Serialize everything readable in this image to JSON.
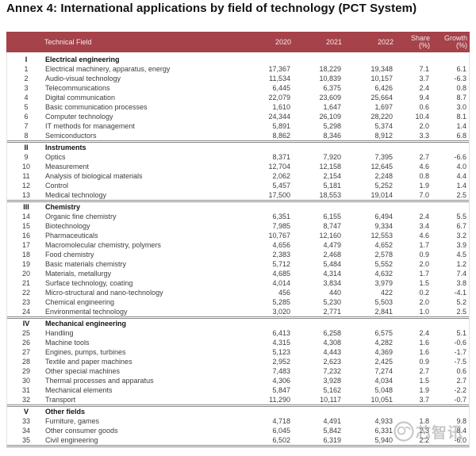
{
  "title": "Annex 4: International applications by field of technology (PCT System)",
  "watermark": {
    "logo_icon": "chip-mascot-circle-icon",
    "text": "芯智讯"
  },
  "table": {
    "columns": {
      "field": "Technical Field",
      "years": [
        "2020",
        "2021",
        "2022"
      ],
      "share": {
        "label": "Share",
        "sub": "(%)"
      },
      "growth": {
        "label": "Growth",
        "sub": "(%)"
      }
    },
    "sections": [
      {
        "numeral": "I",
        "name": "Electrical engineering",
        "rows": [
          {
            "num": "1",
            "field": "Electrical machinery, apparatus, energy",
            "y2020": "17,367",
            "y2021": "18,229",
            "y2022": "19,348",
            "share": "7.1",
            "growth": "6.1"
          },
          {
            "num": "2",
            "field": "Audio-visual technology",
            "y2020": "11,534",
            "y2021": "10,839",
            "y2022": "10,157",
            "share": "3.7",
            "growth": "-6.3"
          },
          {
            "num": "3",
            "field": "Telecommunications",
            "y2020": "6,445",
            "y2021": "6,375",
            "y2022": "6,426",
            "share": "2.4",
            "growth": "0.8"
          },
          {
            "num": "4",
            "field": "Digital communication",
            "y2020": "22,079",
            "y2021": "23,609",
            "y2022": "25,664",
            "share": "9.4",
            "growth": "8.7"
          },
          {
            "num": "5",
            "field": "Basic communication processes",
            "y2020": "1,610",
            "y2021": "1,647",
            "y2022": "1,697",
            "share": "0.6",
            "growth": "3.0"
          },
          {
            "num": "6",
            "field": "Computer technology",
            "y2020": "24,344",
            "y2021": "26,109",
            "y2022": "28,220",
            "share": "10.4",
            "growth": "8.1"
          },
          {
            "num": "7",
            "field": "IT methods for management",
            "y2020": "5,891",
            "y2021": "5,298",
            "y2022": "5,374",
            "share": "2.0",
            "growth": "1.4"
          },
          {
            "num": "8",
            "field": "Semiconductors",
            "y2020": "8,862",
            "y2021": "8,346",
            "y2022": "8,912",
            "share": "3.3",
            "growth": "6.8"
          }
        ]
      },
      {
        "numeral": "II",
        "name": "Instruments",
        "rows": [
          {
            "num": "9",
            "field": "Optics",
            "y2020": "8,371",
            "y2021": "7,920",
            "y2022": "7,395",
            "share": "2.7",
            "growth": "-6.6"
          },
          {
            "num": "10",
            "field": "Measurement",
            "y2020": "12,704",
            "y2021": "12,158",
            "y2022": "12,645",
            "share": "4.6",
            "growth": "4.0"
          },
          {
            "num": "11",
            "field": "Analysis of biological materials",
            "y2020": "2,062",
            "y2021": "2,154",
            "y2022": "2,248",
            "share": "0.8",
            "growth": "4.4"
          },
          {
            "num": "12",
            "field": "Control",
            "y2020": "5,457",
            "y2021": "5,181",
            "y2022": "5,252",
            "share": "1.9",
            "growth": "1.4"
          },
          {
            "num": "13",
            "field": "Medical technology",
            "y2020": "17,500",
            "y2021": "18,553",
            "y2022": "19,014",
            "share": "7.0",
            "growth": "2.5"
          }
        ]
      },
      {
        "numeral": "III",
        "name": "Chemistry",
        "rows": [
          {
            "num": "14",
            "field": "Organic fine chemistry",
            "y2020": "6,351",
            "y2021": "6,155",
            "y2022": "6,494",
            "share": "2.4",
            "growth": "5.5"
          },
          {
            "num": "15",
            "field": "Biotechnology",
            "y2020": "7,985",
            "y2021": "8,747",
            "y2022": "9,334",
            "share": "3.4",
            "growth": "6.7"
          },
          {
            "num": "16",
            "field": "Pharmaceuticals",
            "y2020": "10,767",
            "y2021": "12,160",
            "y2022": "12,553",
            "share": "4.6",
            "growth": "3.2"
          },
          {
            "num": "17",
            "field": "Macromolecular chemistry, polymers",
            "y2020": "4,656",
            "y2021": "4,479",
            "y2022": "4,652",
            "share": "1.7",
            "growth": "3.9"
          },
          {
            "num": "18",
            "field": "Food chemistry",
            "y2020": "2,383",
            "y2021": "2,468",
            "y2022": "2,578",
            "share": "0.9",
            "growth": "4.5"
          },
          {
            "num": "19",
            "field": "Basic materials chemistry",
            "y2020": "5,712",
            "y2021": "5,484",
            "y2022": "5,552",
            "share": "2.0",
            "growth": "1.2"
          },
          {
            "num": "20",
            "field": "Materials, metallurgy",
            "y2020": "4,685",
            "y2021": "4,314",
            "y2022": "4,632",
            "share": "1.7",
            "growth": "7.4"
          },
          {
            "num": "21",
            "field": "Surface technology, coating",
            "y2020": "4,014",
            "y2021": "3,834",
            "y2022": "3,979",
            "share": "1.5",
            "growth": "3.8"
          },
          {
            "num": "22",
            "field": "Micro-structural and nano-technology",
            "y2020": "456",
            "y2021": "440",
            "y2022": "422",
            "share": "0.2",
            "growth": "-4.1"
          },
          {
            "num": "23",
            "field": "Chemical engineering",
            "y2020": "5,285",
            "y2021": "5,230",
            "y2022": "5,503",
            "share": "2.0",
            "growth": "5.2"
          },
          {
            "num": "24",
            "field": "Environmental technology",
            "y2020": "3,020",
            "y2021": "2,771",
            "y2022": "2,841",
            "share": "1.0",
            "growth": "2.5"
          }
        ]
      },
      {
        "numeral": "IV",
        "name": "Mechanical engineering",
        "rows": [
          {
            "num": "25",
            "field": "Handling",
            "y2020": "6,413",
            "y2021": "6,258",
            "y2022": "6,575",
            "share": "2.4",
            "growth": "5.1"
          },
          {
            "num": "26",
            "field": "Machine tools",
            "y2020": "4,315",
            "y2021": "4,308",
            "y2022": "4,282",
            "share": "1.6",
            "growth": "-0.6"
          },
          {
            "num": "27",
            "field": "Engines, pumps, turbines",
            "y2020": "5,123",
            "y2021": "4,443",
            "y2022": "4,369",
            "share": "1.6",
            "growth": "-1.7"
          },
          {
            "num": "28",
            "field": "Textile and paper machines",
            "y2020": "2,952",
            "y2021": "2,623",
            "y2022": "2,425",
            "share": "0.9",
            "growth": "-7.5"
          },
          {
            "num": "29",
            "field": "Other special machines",
            "y2020": "7,483",
            "y2021": "7,232",
            "y2022": "7,274",
            "share": "2.7",
            "growth": "0.6"
          },
          {
            "num": "30",
            "field": "Thermal processes and apparatus",
            "y2020": "4,306",
            "y2021": "3,928",
            "y2022": "4,034",
            "share": "1.5",
            "growth": "2.7"
          },
          {
            "num": "31",
            "field": "Mechanical elements",
            "y2020": "5,847",
            "y2021": "5,162",
            "y2022": "5,048",
            "share": "1.9",
            "growth": "-2.2"
          },
          {
            "num": "32",
            "field": "Transport",
            "y2020": "11,290",
            "y2021": "10,117",
            "y2022": "10,051",
            "share": "3.7",
            "growth": "-0.7"
          }
        ]
      },
      {
        "numeral": "V",
        "name": "Other fields",
        "rows": [
          {
            "num": "33",
            "field": "Furniture, games",
            "y2020": "4,718",
            "y2021": "4,491",
            "y2022": "4,933",
            "share": "1.8",
            "growth": "9.8"
          },
          {
            "num": "34",
            "field": "Other consumer goods",
            "y2020": "6,045",
            "y2021": "5,842",
            "y2022": "6,331",
            "share": "2.3",
            "growth": "8.4"
          },
          {
            "num": "35",
            "field": "Civil engineering",
            "y2020": "6,502",
            "y2021": "6,319",
            "y2022": "5,940",
            "share": "2.2",
            "growth": "-6.0"
          }
        ]
      }
    ]
  }
}
